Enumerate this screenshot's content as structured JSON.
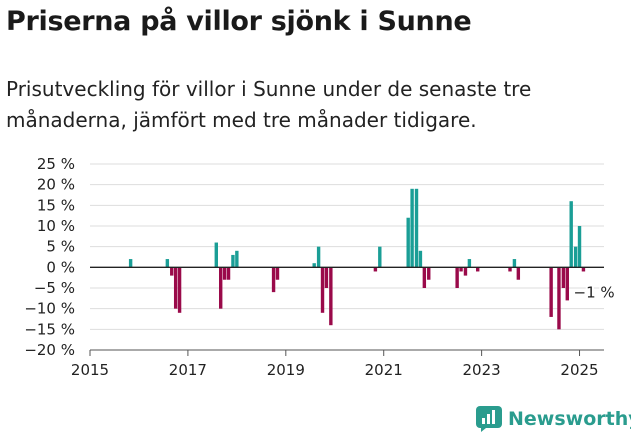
{
  "header": {
    "title": "Priserna på villor sjönk i Sunne",
    "subtitle": "Prisutveckling för villor i Sunne under de senaste tre månaderna, jämfört med tre månader tidigare."
  },
  "brand": {
    "name": "Newsworthy",
    "logo_icon": "bar-chart-logo-icon",
    "color": "#2a9c8e"
  },
  "colors": {
    "positive": "#1a9e96",
    "negative": "#9a0a4a",
    "zero_line": "#222222",
    "grid": "#dddddd"
  },
  "chart_data": {
    "type": "bar",
    "x_ticks": [
      "2015",
      "2017",
      "2019",
      "2021",
      "2023",
      "2025"
    ],
    "y_ticks": [
      "25 %",
      "20 %",
      "15 %",
      "10 %",
      "5 %",
      "0 %",
      "−5 %",
      "−10 %",
      "−15 %",
      "−20 %"
    ],
    "ylim": [
      -20,
      25
    ],
    "xlim": [
      2015.0,
      2025.5
    ],
    "grid": true,
    "annotation": {
      "text": "−1 %",
      "x": 2025.0,
      "y": -1
    },
    "series": [
      {
        "values": [
          {
            "x": 2015.83,
            "y": 2
          },
          {
            "x": 2016.58,
            "y": 2
          },
          {
            "x": 2016.67,
            "y": -2
          },
          {
            "x": 2016.75,
            "y": -10
          },
          {
            "x": 2016.83,
            "y": -11
          },
          {
            "x": 2017.58,
            "y": 6
          },
          {
            "x": 2017.67,
            "y": -10
          },
          {
            "x": 2017.75,
            "y": -3
          },
          {
            "x": 2017.83,
            "y": -3
          },
          {
            "x": 2017.92,
            "y": 3
          },
          {
            "x": 2018.0,
            "y": 4
          },
          {
            "x": 2018.75,
            "y": -6
          },
          {
            "x": 2018.83,
            "y": -3
          },
          {
            "x": 2019.58,
            "y": 1
          },
          {
            "x": 2019.67,
            "y": 5
          },
          {
            "x": 2019.75,
            "y": -11
          },
          {
            "x": 2019.83,
            "y": -5
          },
          {
            "x": 2019.92,
            "y": -14
          },
          {
            "x": 2020.83,
            "y": -1
          },
          {
            "x": 2020.92,
            "y": 5
          },
          {
            "x": 2021.5,
            "y": 12
          },
          {
            "x": 2021.58,
            "y": 19
          },
          {
            "x": 2021.67,
            "y": 19
          },
          {
            "x": 2021.75,
            "y": 4
          },
          {
            "x": 2021.83,
            "y": -5
          },
          {
            "x": 2021.92,
            "y": -3
          },
          {
            "x": 2022.5,
            "y": -5
          },
          {
            "x": 2022.58,
            "y": -1
          },
          {
            "x": 2022.67,
            "y": -2
          },
          {
            "x": 2022.75,
            "y": 2
          },
          {
            "x": 2022.92,
            "y": -1
          },
          {
            "x": 2023.58,
            "y": -1
          },
          {
            "x": 2023.67,
            "y": 2
          },
          {
            "x": 2023.75,
            "y": -3
          },
          {
            "x": 2024.42,
            "y": -12
          },
          {
            "x": 2024.58,
            "y": -15
          },
          {
            "x": 2024.67,
            "y": -5
          },
          {
            "x": 2024.75,
            "y": -8
          },
          {
            "x": 2024.83,
            "y": 16
          },
          {
            "x": 2024.92,
            "y": 5
          },
          {
            "x": 2025.0,
            "y": 10
          },
          {
            "x": 2025.08,
            "y": -1
          }
        ]
      }
    ]
  }
}
